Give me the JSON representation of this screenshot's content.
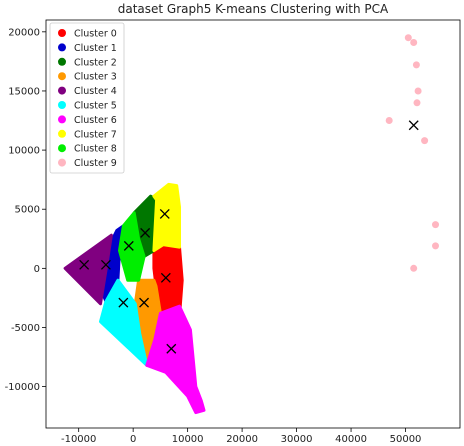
{
  "chart_data": {
    "type": "scatter",
    "title": "dataset Graph5 K-means Clustering with PCA",
    "xlabel": "",
    "ylabel": "",
    "xlim": [
      -16000,
      60000
    ],
    "ylim": [
      -13500,
      21000
    ],
    "xticks": [
      -10000,
      0,
      10000,
      20000,
      30000,
      40000,
      50000
    ],
    "yticks": [
      -10000,
      -5000,
      0,
      5000,
      10000,
      15000,
      20000
    ],
    "xtick_labels": [
      "-10000",
      "0",
      "10000",
      "20000",
      "30000",
      "40000",
      "50000"
    ],
    "ytick_labels": [
      "-10000",
      "-5000",
      "0",
      "5000",
      "10000",
      "15000",
      "20000"
    ],
    "grid": false,
    "legend_position": "top-left",
    "series": [
      {
        "name": "Cluster 0",
        "color": "#ff0000",
        "region": [
          [
            3800,
            1500
          ],
          [
            5500,
            2000
          ],
          [
            8500,
            1800
          ],
          [
            9000,
            -1000
          ],
          [
            8500,
            -4000
          ],
          [
            5000,
            -3800
          ],
          [
            4200,
            -1500
          ],
          [
            3800,
            0
          ]
        ]
      },
      {
        "name": "Cluster 1",
        "color": "#0000cc",
        "region": [
          [
            -3000,
            3200
          ],
          [
            -1800,
            3600
          ],
          [
            -2500,
            1500
          ],
          [
            -2800,
            -1000
          ],
          [
            -5000,
            -2800
          ],
          [
            -7000,
            -500
          ]
        ]
      },
      {
        "name": "Cluster 2",
        "color": "#007700",
        "region": [
          [
            200,
            4700
          ],
          [
            3200,
            6100
          ],
          [
            4300,
            5800
          ],
          [
            3800,
            1500
          ],
          [
            2000,
            1000
          ],
          [
            1000,
            2500
          ]
        ]
      },
      {
        "name": "Cluster 3",
        "color": "#ff9900",
        "region": [
          [
            1000,
            -1000
          ],
          [
            3800,
            -1000
          ],
          [
            4200,
            -1500
          ],
          [
            5000,
            -3800
          ],
          [
            4000,
            -6000
          ],
          [
            2500,
            -8200
          ],
          [
            1200,
            -5500
          ],
          [
            400,
            -3000
          ]
        ]
      },
      {
        "name": "Cluster 4",
        "color": "#800080",
        "region": [
          [
            -4000,
            2800
          ],
          [
            -5000,
            -200
          ],
          [
            -6000,
            -3000
          ],
          [
            -12500,
            0
          ]
        ]
      },
      {
        "name": "Cluster 5",
        "color": "#00ffff",
        "region": [
          [
            -5000,
            -2800
          ],
          [
            -2800,
            -1000
          ],
          [
            400,
            -3000
          ],
          [
            1200,
            -5500
          ],
          [
            2500,
            -8200
          ],
          [
            -6000,
            -4500
          ]
        ]
      },
      {
        "name": "Cluster 6",
        "color": "#ff00ff",
        "region": [
          [
            4000,
            -6000
          ],
          [
            5000,
            -3800
          ],
          [
            8500,
            -3200
          ],
          [
            10500,
            -5200
          ],
          [
            11500,
            -10000
          ],
          [
            12500,
            -11200
          ],
          [
            13000,
            -12000
          ],
          [
            11500,
            -12200
          ],
          [
            10000,
            -10800
          ],
          [
            6000,
            -8800
          ],
          [
            2500,
            -8200
          ]
        ]
      },
      {
        "name": "Cluster 7",
        "color": "#ffff00",
        "region": [
          [
            3800,
            6100
          ],
          [
            6500,
            7100
          ],
          [
            8000,
            7000
          ],
          [
            8500,
            5200
          ],
          [
            8500,
            1800
          ],
          [
            5500,
            2000
          ],
          [
            3800,
            1500
          ],
          [
            4300,
            5800
          ]
        ]
      },
      {
        "name": "Cluster 8",
        "color": "#00ee00",
        "region": [
          [
            -1800,
            3600
          ],
          [
            200,
            4700
          ],
          [
            1000,
            2500
          ],
          [
            2000,
            1000
          ],
          [
            1000,
            -1000
          ],
          [
            -1000,
            -1000
          ],
          [
            -2500,
            1500
          ]
        ]
      },
      {
        "name": "Cluster 9",
        "color": "#ffb6c1",
        "x": [
          50500,
          51500,
          52000,
          52300,
          52100,
          53500,
          47000,
          55500,
          55500,
          51500
        ],
        "y": [
          19500,
          19100,
          17200,
          15000,
          14000,
          10800,
          12500,
          3700,
          1900,
          0
        ]
      }
    ],
    "centroids": {
      "marker": "x",
      "color": "#000000",
      "x": [
        6000,
        -5000,
        2200,
        2000,
        -9000,
        -1800,
        7000,
        5800,
        -800,
        51500
      ],
      "y": [
        -800,
        300,
        3000,
        -2900,
        300,
        -2900,
        -6800,
        4600,
        1900,
        12100
      ]
    }
  }
}
